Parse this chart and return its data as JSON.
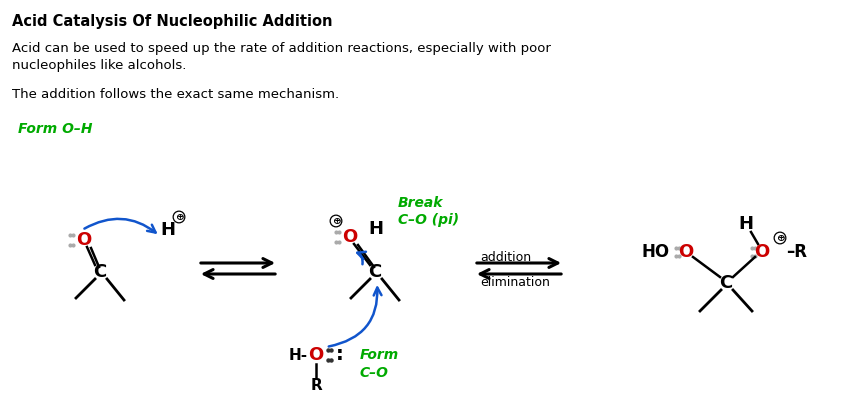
{
  "title": "Acid Catalysis Of Nucleophilic Addition",
  "body_text1": "Acid can be used to speed up the rate of addition reactions, especially with poor\nnucleophiles like alcohols.",
  "body_text2": "The addition follows the exact same mechanism.",
  "form_oh": "Form O–H",
  "break_label1": "Break",
  "break_label2": "C–O (pi)",
  "form_co1": "Form",
  "form_co2": "C–O",
  "addition": "addition",
  "elimination": "elimination",
  "bg_color": "#ffffff",
  "text_color": "#000000",
  "red_color": "#cc0000",
  "green_color": "#00aa00",
  "blue_color": "#1155cc",
  "gray_color": "#aaaaaa"
}
